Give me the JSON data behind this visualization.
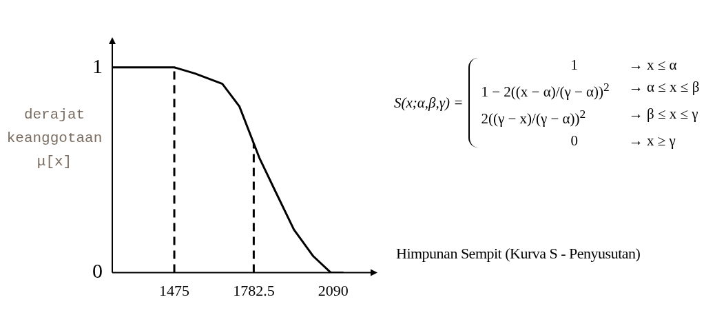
{
  "chart_data": {
    "type": "line",
    "ylabel": "derajat keanggotaan μ[x]",
    "annotations": [
      "S(x;α,β,γ) =",
      "1",
      "→  x ≤ α",
      "1 − 2((x − α)/(γ − α))$^{2}$",
      "→  α ≤ x ≤ β",
      "2((γ − x)/(γ − α))$^{2}$",
      "→  β ≤ x ≤ γ",
      "0",
      "→  x ≥ γ",
      "Himpunan  Sempit (Kurva S - Penyusutan)"
    ],
    "series": [
      {
        "color": "#000000",
        "x": [
          1235,
          1475,
          1555,
          1661,
          1727,
          1804,
          1861,
          1938,
          2013,
          2081,
          2130
        ],
        "values": [
          1,
          1,
          0.97,
          0.92,
          0.81,
          0.56,
          0.41,
          0.21,
          0.08,
          0,
          0
        ]
      }
    ],
    "xlim": [
      1235,
      2240
    ],
    "xticks": [
      1475,
      1782.5,
      2090
    ],
    "ylim": [
      0,
      1.12
    ],
    "yticks": [
      0,
      1
    ],
    "ref_lines": [
      {
        "axis": "x",
        "value": 1475,
        "line_style": "dashed",
        "color": "#000000"
      },
      {
        "axis": "x",
        "value": 1782.5,
        "line_style": "dashed",
        "color": "#000000"
      }
    ],
    "grid": false,
    "legend": false,
    "marker": "none",
    "line_style": "solid"
  }
}
